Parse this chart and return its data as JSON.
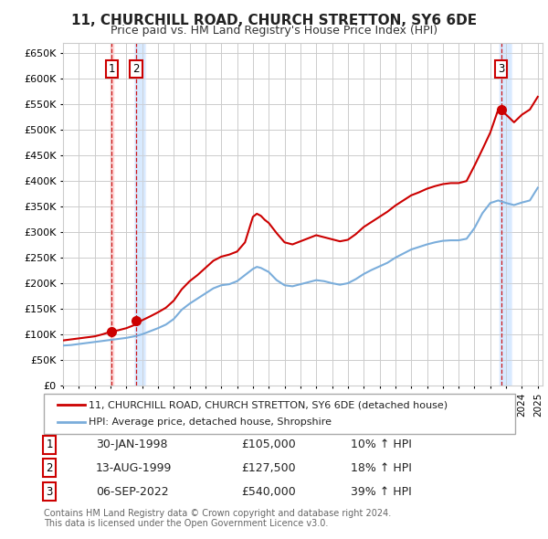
{
  "title": "11, CHURCHILL ROAD, CHURCH STRETTON, SY6 6DE",
  "subtitle": "Price paid vs. HM Land Registry's House Price Index (HPI)",
  "ylim": [
    0,
    670000
  ],
  "yticks": [
    0,
    50000,
    100000,
    150000,
    200000,
    250000,
    300000,
    350000,
    400000,
    450000,
    500000,
    550000,
    600000,
    650000
  ],
  "xmin": 1995.0,
  "xmax": 2025.3,
  "sale_color": "#cc0000",
  "hpi_color": "#7aaddb",
  "sale_label": "11, CHURCHILL ROAD, CHURCH STRETTON, SY6 6DE (detached house)",
  "hpi_label": "HPI: Average price, detached house, Shropshire",
  "transactions": [
    {
      "num": 1,
      "date_str": "30-JAN-1998",
      "date_x": 1998.08,
      "price": 105000,
      "pct": "10%",
      "dir": "↑"
    },
    {
      "num": 2,
      "date_str": "13-AUG-1999",
      "date_x": 1999.62,
      "price": 127500,
      "pct": "18%",
      "dir": "↑"
    },
    {
      "num": 3,
      "date_str": "06-SEP-2022",
      "date_x": 2022.68,
      "price": 540000,
      "pct": "39%",
      "dir": "↑"
    }
  ],
  "footnote1": "Contains HM Land Registry data © Crown copyright and database right 2024.",
  "footnote2": "This data is licensed under the Open Government Licence v3.0.",
  "background_color": "#ffffff",
  "grid_color": "#cccccc",
  "years_hpi": [
    1995.0,
    1995.5,
    1996.0,
    1996.5,
    1997.0,
    1997.5,
    1998.0,
    1998.5,
    1999.0,
    1999.5,
    2000.0,
    2000.5,
    2001.0,
    2001.5,
    2002.0,
    2002.5,
    2003.0,
    2003.5,
    2004.0,
    2004.5,
    2005.0,
    2005.5,
    2006.0,
    2006.5,
    2007.0,
    2007.25,
    2007.5,
    2007.75,
    2008.0,
    2008.5,
    2009.0,
    2009.5,
    2010.0,
    2010.5,
    2011.0,
    2011.5,
    2012.0,
    2012.5,
    2013.0,
    2013.5,
    2014.0,
    2014.5,
    2015.0,
    2015.5,
    2016.0,
    2016.5,
    2017.0,
    2017.5,
    2018.0,
    2018.5,
    2019.0,
    2019.5,
    2020.0,
    2020.5,
    2021.0,
    2021.5,
    2022.0,
    2022.5,
    2023.0,
    2023.5,
    2024.0,
    2024.5,
    2025.0
  ],
  "vals_hpi": [
    78000,
    79000,
    81000,
    83000,
    85000,
    87000,
    89000,
    91000,
    93000,
    96000,
    100000,
    106000,
    112000,
    119000,
    130000,
    148000,
    160000,
    170000,
    180000,
    190000,
    196000,
    198000,
    204000,
    216000,
    228000,
    232000,
    230000,
    226000,
    222000,
    206000,
    196000,
    194000,
    198000,
    202000,
    206000,
    204000,
    200000,
    197000,
    200000,
    208000,
    218000,
    226000,
    233000,
    240000,
    250000,
    258000,
    266000,
    271000,
    276000,
    280000,
    283000,
    284000,
    284000,
    287000,
    308000,
    337000,
    357000,
    362000,
    357000,
    353000,
    358000,
    362000,
    387000
  ],
  "years_sale": [
    1995.0,
    1995.5,
    1996.0,
    1996.5,
    1997.0,
    1997.5,
    1998.0,
    1998.5,
    1999.0,
    1999.5,
    2000.0,
    2000.5,
    2001.0,
    2001.5,
    2002.0,
    2002.5,
    2003.0,
    2003.5,
    2004.0,
    2004.5,
    2005.0,
    2005.5,
    2006.0,
    2006.5,
    2007.0,
    2007.25,
    2007.5,
    2007.75,
    2008.0,
    2008.5,
    2009.0,
    2009.5,
    2010.0,
    2010.5,
    2011.0,
    2011.5,
    2012.0,
    2012.5,
    2013.0,
    2013.5,
    2014.0,
    2014.5,
    2015.0,
    2015.5,
    2016.0,
    2016.5,
    2017.0,
    2017.5,
    2018.0,
    2018.5,
    2019.0,
    2019.5,
    2020.0,
    2020.5,
    2021.0,
    2021.5,
    2022.0,
    2022.5,
    2023.0,
    2023.5,
    2024.0,
    2024.5,
    2025.0
  ],
  "vals_sale": [
    88000,
    90000,
    92000,
    94000,
    96000,
    100000,
    105000,
    108000,
    112000,
    118000,
    127500,
    135000,
    143000,
    152000,
    166000,
    188000,
    204000,
    216000,
    230000,
    244000,
    252000,
    256000,
    262000,
    280000,
    330000,
    336000,
    332000,
    324000,
    318000,
    298000,
    280000,
    276000,
    282000,
    288000,
    294000,
    290000,
    286000,
    282000,
    285000,
    296000,
    310000,
    320000,
    330000,
    340000,
    352000,
    362000,
    372000,
    378000,
    385000,
    390000,
    394000,
    396000,
    396000,
    400000,
    430000,
    462000,
    495000,
    540000,
    530000,
    515000,
    530000,
    540000,
    565000
  ]
}
